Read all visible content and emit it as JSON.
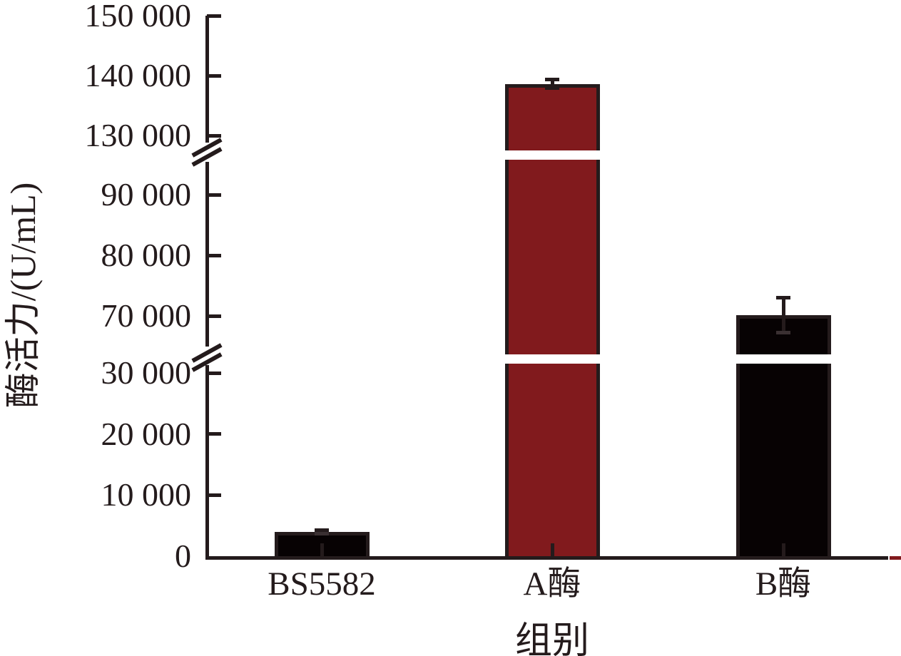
{
  "figure": {
    "background": "#ffffff",
    "ink_color": "#241b1c",
    "accent_red": "#811a1d"
  },
  "chart_data": {
    "type": "bar",
    "title": "",
    "xlabel": "组别",
    "ylabel": "酶活力/(U/mL)",
    "categories": [
      "BS5582",
      "A酶",
      "B酶"
    ],
    "values": [
      4000,
      138600,
      70100
    ],
    "errors": [
      300,
      700,
      2900
    ],
    "bar_colors": [
      "#070203",
      "#811a1d",
      "#070203"
    ],
    "bar_names": [
      "bar-bs5582",
      "bar-a-enzyme",
      "bar-b-enzyme"
    ],
    "ylim": [
      0,
      150000
    ],
    "y_ticks": [
      {
        "value": 0,
        "label": "0"
      },
      {
        "value": 10000,
        "label": "10 000"
      },
      {
        "value": 20000,
        "label": "20 000"
      },
      {
        "value": 30000,
        "label": "30 000"
      },
      {
        "value": 70000,
        "label": "70 000"
      },
      {
        "value": 80000,
        "label": "80 000"
      },
      {
        "value": 90000,
        "label": "90 000"
      },
      {
        "value": 130000,
        "label": "130 000"
      },
      {
        "value": 140000,
        "label": "140 000"
      },
      {
        "value": 150000,
        "label": "150 000"
      }
    ],
    "axis_breaks": [
      {
        "from": 30000,
        "to": 70000
      },
      {
        "from": 90000,
        "to": 130000
      }
    ],
    "grid": false,
    "legend": null,
    "error_bar_style": "caps",
    "axis_end_accent": "red-segment"
  }
}
